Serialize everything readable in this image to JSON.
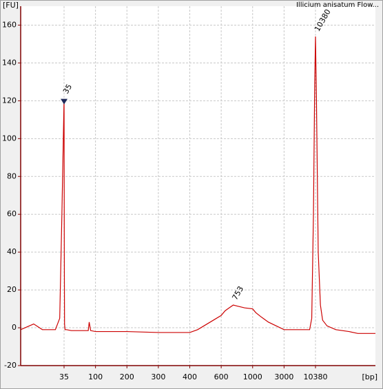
{
  "chart_data": {
    "type": "line",
    "title": "Illicium anisatum Flow...",
    "ylabel": "[FU]",
    "xlabel": "[bp]",
    "xlim": [
      25,
      24000
    ],
    "ylim": [
      -20,
      170
    ],
    "xticks": [
      35,
      100,
      200,
      300,
      400,
      600,
      1000,
      3000,
      10380
    ],
    "yticks": [
      -20,
      0,
      20,
      40,
      60,
      80,
      100,
      120,
      140,
      160
    ],
    "grid": true,
    "series": [
      {
        "name": "Illicium anisatum Flow",
        "color": "#cc0000",
        "x": [
          25,
          28,
          30,
          32,
          33,
          34,
          34.5,
          35,
          35.5,
          36,
          37,
          40,
          50,
          60,
          80,
          85,
          87,
          90,
          100,
          150,
          200,
          300,
          400,
          450,
          500,
          550,
          600,
          650,
          700,
          753,
          800,
          900,
          1000,
          1200,
          1500,
          2000,
          2500,
          3000,
          4000,
          6000,
          8000,
          9000,
          9500,
          9900,
          10200,
          10380,
          10600,
          11000,
          11500,
          12000,
          13000,
          15000,
          18000,
          20000,
          22000,
          24000
        ],
        "values": [
          -1,
          2,
          -1,
          -1,
          -1,
          5,
          60,
          121,
          40,
          2,
          -1,
          -1,
          -1.5,
          -1.5,
          -1.5,
          -1.5,
          3,
          -1.5,
          -2,
          -2,
          -2,
          -2.5,
          -2.5,
          -1,
          1.5,
          4,
          6.5,
          9,
          10.5,
          12,
          11.5,
          10.5,
          10,
          8,
          6,
          3,
          1,
          -1,
          -1,
          -1,
          -1,
          -1,
          5,
          60,
          130,
          154,
          120,
          40,
          12,
          4,
          1,
          -1,
          -2,
          -3,
          -3,
          -3
        ]
      }
    ],
    "peak_labels": [
      {
        "text": "35",
        "x": 35,
        "y": 121,
        "color": "#008000"
      },
      {
        "text": "753",
        "x": 753,
        "y": 12,
        "color": "#000000"
      },
      {
        "text": "10380",
        "x": 10380,
        "y": 154,
        "color": "#7030a0"
      }
    ]
  }
}
